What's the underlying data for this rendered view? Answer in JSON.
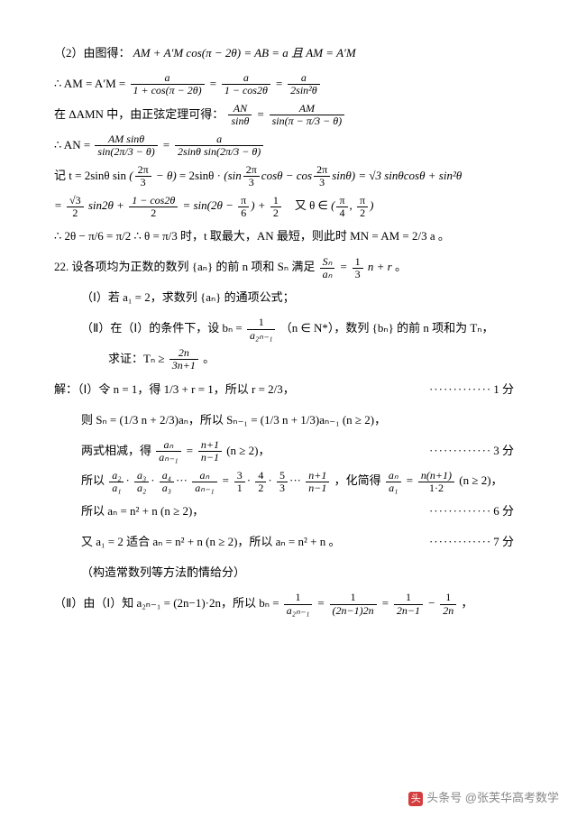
{
  "lines": {
    "l1_pre": "（2）由图得：",
    "l1_eq": "AM + A′M cos(π − 2θ) = AB = a 且 AM = A′M",
    "l2_pre": "∴ AM = A′M = ",
    "l3_pre": "在 ΔAMN 中，由正弦定理可得：",
    "l4_pre": "∴ AN = ",
    "l5_pre": "记 t = 2sinθ sin",
    "l5_mid": " = 2sinθ · ",
    "l5_tail": " = √3 sinθcosθ + sin²θ",
    "l6_tail": "又 θ ∈ ",
    "l7": "∴ 2θ − π/6 = π/2   ∴ θ = π/3 时，t 取最大，AN 最短，则此时 MN = AM = 2/3 a 。",
    "q22": "22. 设各项均为正数的数列 {aₙ} 的前 n 项和 Sₙ 满足 ",
    "q22_tail": " 。",
    "q22_1": "（Ⅰ）若 a₁ = 2，求数列 {aₙ} 的通项公式；",
    "q22_2a": "（Ⅱ）在（Ⅰ）的条件下，设 bₙ = ",
    "q22_2b": "（n ∈ N*），数列 {bₙ} 的前 n 项和为 Tₙ，",
    "q22_2c": "求证：Tₙ ≥ ",
    "sol": "解：（Ⅰ）令 n = 1，得 1/3 + r = 1，所以 r = 2/3，",
    "sol2a": "则 Sₙ = (1/3 n + 2/3)aₙ，所以 Sₙ₋₁ = (1/3 n + 1/3)aₙ₋₁ (n ≥ 2)，",
    "sol3a": "两式相减，得 ",
    "sol3b": " (n ≥ 2)，",
    "sol4a": "所以 ",
    "sol4b": "，化简得 ",
    "sol4c": " (n ≥ 2)，",
    "sol5": "所以 aₙ = n² + n (n ≥ 2)，",
    "sol6": "又 a₁ = 2 适合 aₙ = n² + n (n ≥ 2)，所以 aₙ = n² + n 。",
    "sol7": "（构造常数列等方法酌情给分）",
    "sol8a": "（Ⅱ）由（Ⅰ）知 a₂ₙ₋₁ = (2n−1)·2n，所以 bₙ = ",
    "score1": "1 分",
    "score3": "3 分",
    "score6": "6 分",
    "score7": "7 分"
  },
  "fracs": {
    "f_a_1pcos": {
      "n": "a",
      "d": "1 + cos(π − 2θ)"
    },
    "f_a_1mcos": {
      "n": "a",
      "d": "1 − cos2θ"
    },
    "f_a_2sin2": {
      "n": "a",
      "d": "2sin²θ"
    },
    "f_AN_sin": {
      "n": "AN",
      "d": "sinθ"
    },
    "f_AM_sin": {
      "n": "AM",
      "d": "sin(π − π/3 − θ)"
    },
    "f_AMsin": {
      "n": "AM sinθ",
      "d": "sin(2π/3 − θ)"
    },
    "f_a_2s": {
      "n": "a",
      "d": "2sinθ sin(2π/3 − θ)"
    },
    "f_2pi3": {
      "n": "2π",
      "d": "3"
    },
    "f_sqrt3_2": {
      "n": "√3",
      "d": "2"
    },
    "f_1mcos2_2": {
      "n": "1 − cos2θ",
      "d": "2"
    },
    "f_pi6": {
      "n": "π",
      "d": "6"
    },
    "f_12": {
      "n": "1",
      "d": "2"
    },
    "f_pi4pi2": {
      "n": "π",
      "d": "4"
    },
    "f_pi2": {
      "n": "π",
      "d": "2"
    },
    "f_Sn_an": {
      "n": "Sₙ",
      "d": "aₙ"
    },
    "f_13n": {
      "n": "1",
      "d": "3"
    },
    "f_1_a2n1": {
      "n": "1",
      "d": "a₂ₙ₋₁"
    },
    "f_2n_3n1": {
      "n": "2n",
      "d": "3n+1"
    },
    "f_an_an1": {
      "n": "aₙ",
      "d": "aₙ₋₁"
    },
    "f_n1_n1": {
      "n": "n+1",
      "d": "n−1"
    },
    "f_a2a1": {
      "n": "a₂",
      "d": "a₁"
    },
    "f_a3a2": {
      "n": "a₃",
      "d": "a₂"
    },
    "f_a4a3": {
      "n": "a₄",
      "d": "a₃"
    },
    "f_31": {
      "n": "3",
      "d": "1"
    },
    "f_42": {
      "n": "4",
      "d": "2"
    },
    "f_53": {
      "n": "5",
      "d": "3"
    },
    "f_ana1": {
      "n": "aₙ",
      "d": "a₁"
    },
    "f_nn1_12": {
      "n": "n(n+1)",
      "d": "1·2"
    },
    "f_1_2n12n": {
      "n": "1",
      "d": "(2n−1)2n"
    },
    "f_1_2n1": {
      "n": "1",
      "d": "2n−1"
    },
    "f_1_2n": {
      "n": "1",
      "d": "2n"
    }
  },
  "watermark": {
    "icon": "头",
    "text": "头条号 @张芙华高考数学"
  },
  "colors": {
    "text": "#000000",
    "bg": "#ffffff",
    "wm": "#888888",
    "wmicon": "#d43d3d"
  }
}
